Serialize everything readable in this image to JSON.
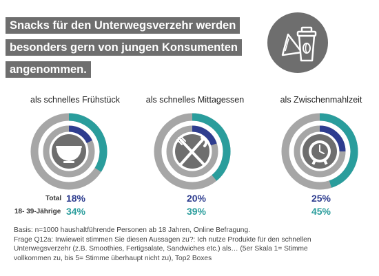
{
  "title_lines": [
    "Snacks für den Unterwegsverzehr werden",
    "besonders gern von jungen Konsumenten",
    "angenommen."
  ],
  "header_icon": "coffee-cup-and-sandwich-icon",
  "legend": {
    "total": "Total",
    "young": "18- 39-Jährige"
  },
  "colors": {
    "total": "#2e3d8f",
    "young": "#2a9d9c",
    "ring_bg": "#a6a6a6",
    "icon_bg": "#6e6e6e"
  },
  "chart_data": {
    "type": "pie",
    "unit": "%",
    "categories": [
      "als schnelles Frühstück",
      "als schnelles Mittagessen",
      "als Zwischenmahlzeit"
    ],
    "series": [
      {
        "name": "Total",
        "values": [
          18,
          20,
          25
        ],
        "labels": [
          "18%",
          "20%",
          "25%"
        ]
      },
      {
        "name": "18- 39-Jährige",
        "values": [
          34,
          39,
          45
        ],
        "labels": [
          "34%",
          "39%",
          "45%"
        ]
      }
    ],
    "icons": [
      "bowl-icon",
      "fork-knife-icon",
      "clock-icon"
    ]
  },
  "footnote": [
    "Basis:  n=1000 haushaltführende Personen ab 18 Jahren, Online Befragung.",
    "Frage Q12a: Inwieweit stimmen Sie diesen Aussagen zu?: Ich nutze Produkte für den schnellen",
    "Unterwegsverzehr (z.B. Smoothies, Fertigsalate, Sandwiches etc.) als…  (5er Skala 1= Stimme",
    "vollkommen zu, bis 5= Stimme überhaupt nicht zu), Top2 Boxes"
  ]
}
